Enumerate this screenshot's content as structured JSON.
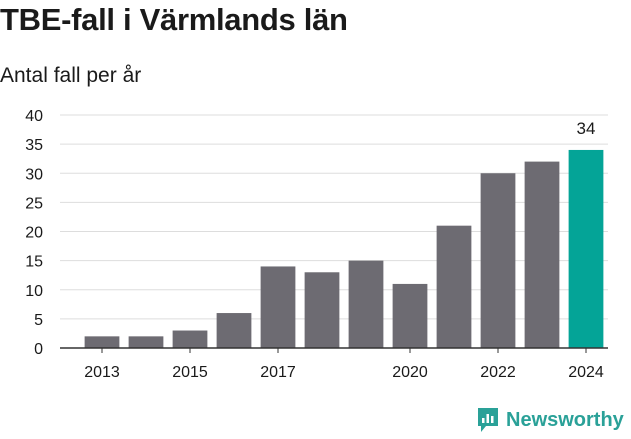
{
  "title": "TBE-fall i Värmlands län",
  "subtitle": "Antal fall per år",
  "brand": "Newsworthy",
  "colors": {
    "bar": "#6d6b72",
    "highlight": "#04a497",
    "grid": "#dddddd",
    "brand": "#2aa198"
  },
  "chart_data": {
    "type": "bar",
    "title": "TBE-fall i Värmlands län",
    "subtitle": "Antal fall per år",
    "xlabel": "",
    "ylabel": "",
    "categories": [
      "2013",
      "2014",
      "2015",
      "2016",
      "2017",
      "2018",
      "2019",
      "2020",
      "2021",
      "2022",
      "2023",
      "2024"
    ],
    "values": [
      2,
      2,
      3,
      6,
      14,
      13,
      15,
      11,
      21,
      30,
      32,
      34
    ],
    "x_tick_labels": [
      "2013",
      "2015",
      "2017",
      "2020",
      "2022",
      "2024"
    ],
    "y_ticks": [
      0,
      5,
      10,
      15,
      20,
      25,
      30,
      35,
      40
    ],
    "ylim": [
      0,
      40
    ],
    "highlight": {
      "category": "2024",
      "label": "34"
    },
    "grid": true,
    "legend": "none"
  }
}
